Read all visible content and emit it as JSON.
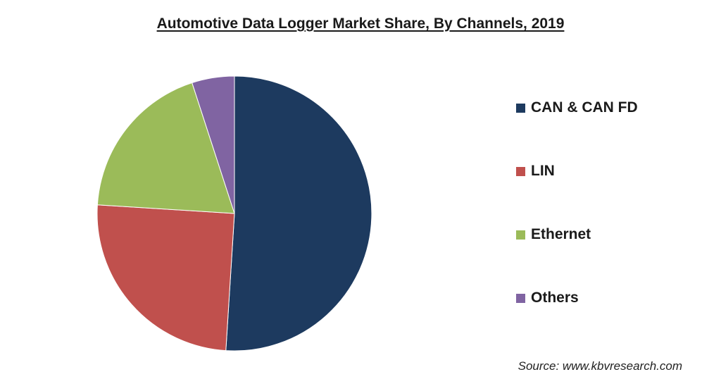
{
  "chart_data": {
    "type": "pie",
    "title": "Automotive Data Logger Market Share, By Channels, 2019",
    "categories": [
      "CAN & CAN FD",
      "LIN",
      "Ethernet",
      "Others"
    ],
    "values": [
      51,
      25,
      19,
      5
    ],
    "unit": "%",
    "colors": [
      "#1d3a5f",
      "#c0504d",
      "#9bbb59",
      "#8064a2"
    ],
    "legend_position": "right",
    "start_angle": "top",
    "direction": "clockwise",
    "source": "Source: www.kbvresearch.com"
  }
}
